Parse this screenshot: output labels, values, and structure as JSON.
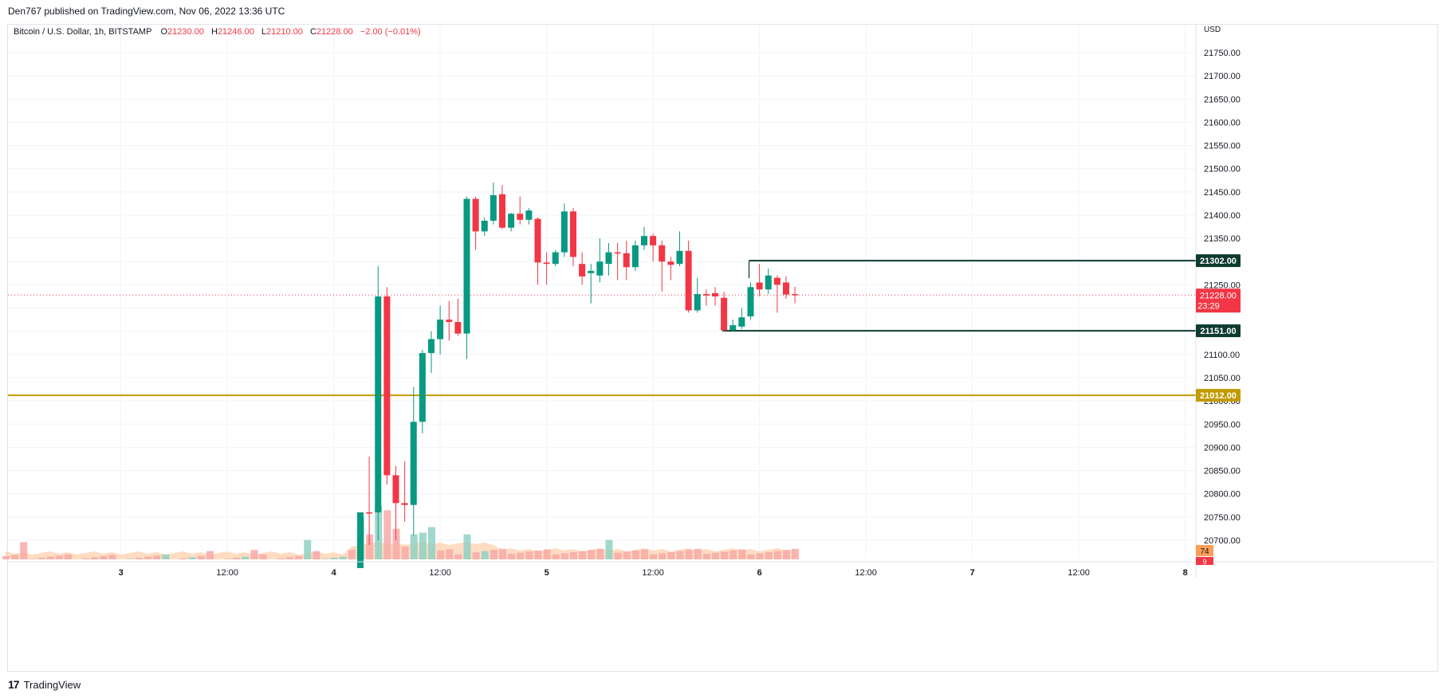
{
  "header": {
    "publisher": "Den767 published on TradingView.com, Nov 06, 2022 13:36 UTC"
  },
  "legend": {
    "symbol": "Bitcoin / U.S. Dollar, 1h, BITSTAMP",
    "o_label": "O",
    "o_value": "21230.00",
    "h_label": "H",
    "h_value": "21246.00",
    "l_label": "L",
    "l_value": "21210.00",
    "c_label": "C",
    "c_value": "21228.00",
    "change": "−2.00 (−0.01%)"
  },
  "footer": {
    "brand": "TradingView",
    "logo": "17"
  },
  "colors": {
    "up": "#089981",
    "down": "#f23645",
    "vol_up": "#8fd1c4",
    "vol_down": "#f7a9a7",
    "hline": "#c29b00",
    "box": "#0e3b30",
    "price_line": "#f23645",
    "vol_ma": "#ffbf8f"
  },
  "chart_data": {
    "type": "candlestick",
    "currency": "USD",
    "y_ticks": [
      "21750.00",
      "21700.00",
      "21650.00",
      "21600.00",
      "21550.00",
      "21500.00",
      "21450.00",
      "21400.00",
      "21350.00",
      "21300.00",
      "21250.00",
      "21200.00",
      "21150.00",
      "21100.00",
      "21050.00",
      "21000.00",
      "20950.00",
      "20900.00",
      "20850.00",
      "20800.00",
      "20750.00",
      "20700.00"
    ],
    "ylim": [
      20680,
      21790
    ],
    "x_ticks": [
      {
        "label": "3",
        "idx": -27
      },
      {
        "label": "12:00",
        "idx": -15
      },
      {
        "label": "4",
        "idx": -3
      },
      {
        "label": "12:00",
        "idx": 9
      },
      {
        "label": "5",
        "idx": 21
      },
      {
        "label": "12:00",
        "idx": 33
      },
      {
        "label": "6",
        "idx": 45
      },
      {
        "label": "12:00",
        "idx": 57
      },
      {
        "label": "7",
        "idx": 69
      },
      {
        "label": "12:00",
        "idx": 81
      },
      {
        "label": "8",
        "idx": 93
      }
    ],
    "candles": [
      {
        "i": 0,
        "o": 20640,
        "h": 20760,
        "l": 20640,
        "c": 20760
      },
      {
        "i": 1,
        "o": 20760,
        "h": 20880,
        "l": 20690,
        "c": 20758
      },
      {
        "i": 2,
        "o": 20760,
        "h": 21290,
        "l": 20700,
        "c": 21225
      },
      {
        "i": 3,
        "o": 21225,
        "h": 21245,
        "l": 20820,
        "c": 20840
      },
      {
        "i": 4,
        "o": 20840,
        "h": 20860,
        "l": 20700,
        "c": 20780
      },
      {
        "i": 5,
        "o": 20780,
        "h": 20870,
        "l": 20740,
        "c": 20776
      },
      {
        "i": 6,
        "o": 20776,
        "h": 21030,
        "l": 20710,
        "c": 20955
      },
      {
        "i": 7,
        "o": 20955,
        "h": 21110,
        "l": 20930,
        "c": 21103
      },
      {
        "i": 8,
        "o": 21103,
        "h": 21150,
        "l": 21060,
        "c": 21133
      },
      {
        "i": 9,
        "o": 21133,
        "h": 21205,
        "l": 21100,
        "c": 21175
      },
      {
        "i": 10,
        "o": 21175,
        "h": 21215,
        "l": 21130,
        "c": 21170
      },
      {
        "i": 11,
        "o": 21170,
        "h": 21220,
        "l": 21140,
        "c": 21145
      },
      {
        "i": 12,
        "o": 21145,
        "h": 21440,
        "l": 21090,
        "c": 21435
      },
      {
        "i": 13,
        "o": 21435,
        "h": 21440,
        "l": 21325,
        "c": 21365
      },
      {
        "i": 14,
        "o": 21365,
        "h": 21395,
        "l": 21355,
        "c": 21388
      },
      {
        "i": 15,
        "o": 21388,
        "h": 21470,
        "l": 21380,
        "c": 21443
      },
      {
        "i": 16,
        "o": 21445,
        "h": 21465,
        "l": 21370,
        "c": 21373
      },
      {
        "i": 17,
        "o": 21373,
        "h": 21405,
        "l": 21365,
        "c": 21403
      },
      {
        "i": 18,
        "o": 21403,
        "h": 21440,
        "l": 21380,
        "c": 21390
      },
      {
        "i": 19,
        "o": 21390,
        "h": 21415,
        "l": 21380,
        "c": 21410
      },
      {
        "i": 20,
        "o": 21392,
        "h": 21395,
        "l": 21250,
        "c": 21298
      },
      {
        "i": 21,
        "o": 21298,
        "h": 21320,
        "l": 21250,
        "c": 21295
      },
      {
        "i": 22,
        "o": 21295,
        "h": 21325,
        "l": 21290,
        "c": 21320
      },
      {
        "i": 23,
        "o": 21320,
        "h": 21425,
        "l": 21310,
        "c": 21408
      },
      {
        "i": 24,
        "o": 21408,
        "h": 21415,
        "l": 21290,
        "c": 21310
      },
      {
        "i": 25,
        "o": 21295,
        "h": 21320,
        "l": 21250,
        "c": 21268
      },
      {
        "i": 26,
        "o": 21275,
        "h": 21295,
        "l": 21210,
        "c": 21280
      },
      {
        "i": 27,
        "o": 21270,
        "h": 21350,
        "l": 21255,
        "c": 21300
      },
      {
        "i": 28,
        "o": 21295,
        "h": 21340,
        "l": 21270,
        "c": 21320
      },
      {
        "i": 29,
        "o": 21320,
        "h": 21340,
        "l": 21260,
        "c": 21318
      },
      {
        "i": 30,
        "o": 21318,
        "h": 21345,
        "l": 21260,
        "c": 21288
      },
      {
        "i": 31,
        "o": 21288,
        "h": 21345,
        "l": 21280,
        "c": 21335
      },
      {
        "i": 32,
        "o": 21335,
        "h": 21375,
        "l": 21325,
        "c": 21355
      },
      {
        "i": 33,
        "o": 21355,
        "h": 21360,
        "l": 21300,
        "c": 21335
      },
      {
        "i": 34,
        "o": 21335,
        "h": 21345,
        "l": 21235,
        "c": 21300
      },
      {
        "i": 35,
        "o": 21300,
        "h": 21310,
        "l": 21260,
        "c": 21293
      },
      {
        "i": 36,
        "o": 21295,
        "h": 21365,
        "l": 21290,
        "c": 21323
      },
      {
        "i": 37,
        "o": 21323,
        "h": 21345,
        "l": 21190,
        "c": 21195
      },
      {
        "i": 38,
        "o": 21195,
        "h": 21265,
        "l": 21190,
        "c": 21230
      },
      {
        "i": 39,
        "o": 21230,
        "h": 21240,
        "l": 21205,
        "c": 21227
      },
      {
        "i": 40,
        "o": 21232,
        "h": 21245,
        "l": 21205,
        "c": 21225
      },
      {
        "i": 41,
        "o": 21222,
        "h": 21235,
        "l": 21150,
        "c": 21152
      },
      {
        "i": 42,
        "o": 21152,
        "h": 21175,
        "l": 21150,
        "c": 21163
      },
      {
        "i": 43,
        "o": 21160,
        "h": 21200,
        "l": 21155,
        "c": 21180
      },
      {
        "i": 44,
        "o": 21182,
        "h": 21255,
        "l": 21175,
        "c": 21245
      },
      {
        "i": 45,
        "o": 21255,
        "h": 21295,
        "l": 21225,
        "c": 21240
      },
      {
        "i": 46,
        "o": 21240,
        "h": 21285,
        "l": 21230,
        "c": 21270
      },
      {
        "i": 47,
        "o": 21265,
        "h": 21270,
        "l": 21190,
        "c": 21250
      },
      {
        "i": 48,
        "o": 21255,
        "h": 21268,
        "l": 21220,
        "c": 21229
      },
      {
        "i": 49,
        "o": 21230,
        "h": 21246,
        "l": 21210,
        "c": 21228
      }
    ],
    "volume_up_idx": [
      -26,
      -22,
      -19,
      -13,
      -6,
      -4,
      -3,
      -2,
      0,
      2,
      6,
      7,
      8,
      12,
      14,
      28
    ],
    "volume_tall": [
      {
        "i": -38,
        "v": 28
      },
      {
        "i": -17,
        "v": 12
      },
      {
        "i": -12,
        "v": 14
      },
      {
        "i": -6,
        "v": 32
      },
      {
        "i": -5,
        "v": 12
      },
      {
        "i": -1,
        "v": 14
      },
      {
        "i": 0,
        "v": 72
      },
      {
        "i": 1,
        "v": 42
      },
      {
        "i": 2,
        "v": 92
      },
      {
        "i": 3,
        "v": 85
      },
      {
        "i": 4,
        "v": 52
      },
      {
        "i": 5,
        "v": 20
      },
      {
        "i": 6,
        "v": 42
      },
      {
        "i": 7,
        "v": 45
      },
      {
        "i": 8,
        "v": 55
      },
      {
        "i": 12,
        "v": 42
      },
      {
        "i": 28,
        "v": 32
      }
    ],
    "levels": [
      {
        "label": "21302.00",
        "value": 21302,
        "start": 44,
        "kind": "resistance"
      },
      {
        "label": "21151.00",
        "value": 21151,
        "start": 41,
        "kind": "support"
      },
      {
        "label": "21012.00",
        "value": 21012,
        "start": -40,
        "kind": "hline"
      }
    ],
    "last_price": {
      "label": "21228.00",
      "value": 21228,
      "countdown": "23:29"
    },
    "volume_labels": [
      {
        "label": "74"
      },
      {
        "label": "9"
      }
    ]
  }
}
